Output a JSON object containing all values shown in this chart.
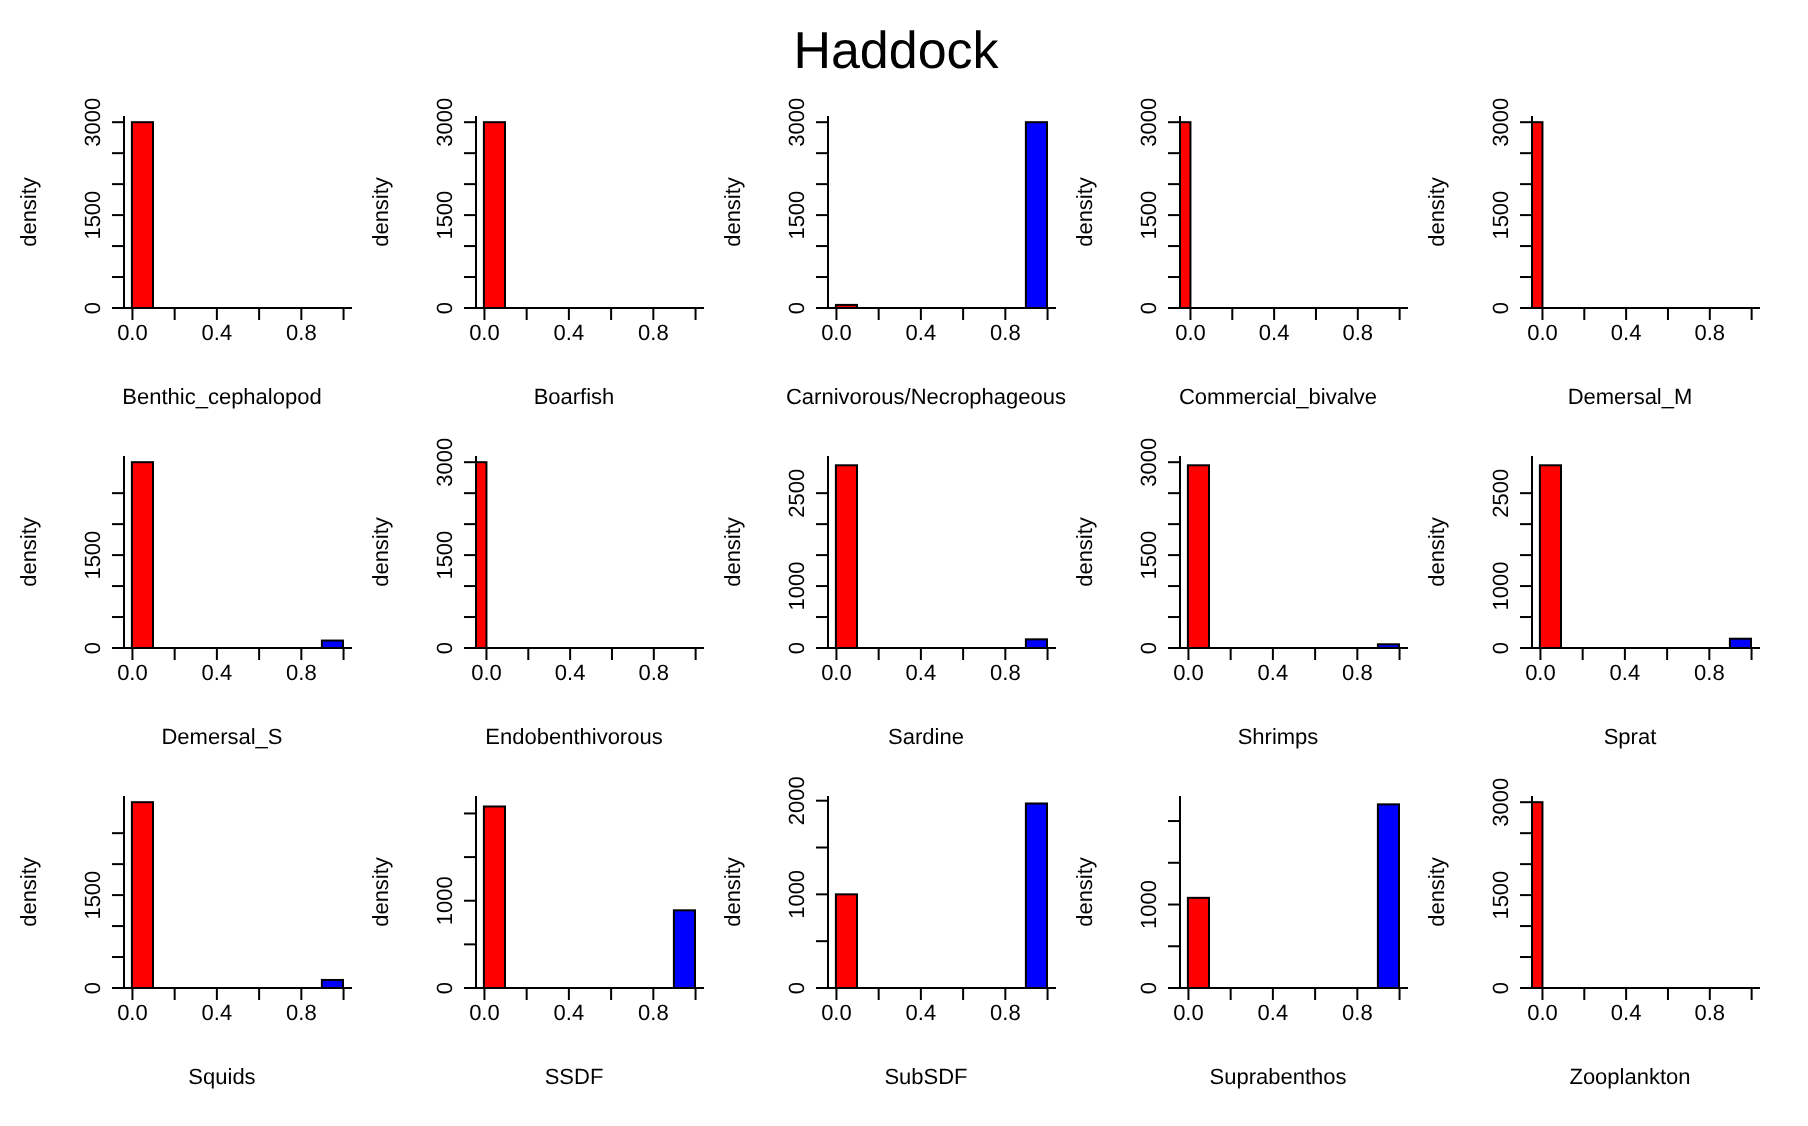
{
  "chart_data": [
    {
      "type": "histogram",
      "xlabel": "Benthic_cephalopod",
      "ylabel": "density",
      "bins": [
        0,
        0.1,
        0.2,
        0.3,
        0.4,
        0.5,
        0.6,
        0.7,
        0.8,
        0.9,
        1
      ],
      "values": [
        3000,
        0,
        0,
        0,
        0,
        0,
        0,
        0,
        0,
        0
      ],
      "colors": [
        "#ff0000",
        "#ffffff",
        "#ffffff",
        "#ffffff",
        "#ffffff",
        "#ffffff",
        "#ffffff",
        "#ffffff",
        "#ffffff",
        "#0000ff"
      ],
      "xlim": [
        -0.04,
        1.04
      ],
      "xticks": [
        {
          "value": 0,
          "label": "0.0"
        },
        {
          "value": 0.2,
          "label": null
        },
        {
          "value": 0.4,
          "label": "0.4"
        },
        {
          "value": 0.6,
          "label": null
        },
        {
          "value": 0.8,
          "label": "0.8"
        },
        {
          "value": 1,
          "label": null
        }
      ],
      "ylim": [
        0,
        3100
      ],
      "yticks": [
        0,
        {
          "value": 500,
          "label": null
        },
        {
          "value": 1000,
          "label": null
        },
        1500,
        {
          "value": 2000,
          "label": null
        },
        {
          "value": 2500,
          "label": null
        },
        3000
      ]
    },
    {
      "type": "histogram",
      "xlabel": "Boarfish",
      "ylabel": "density",
      "bins": [
        0,
        0.1,
        0.2,
        0.3,
        0.4,
        0.5,
        0.6,
        0.7,
        0.8,
        0.9,
        1
      ],
      "values": [
        3000,
        0,
        0,
        0,
        0,
        0,
        0,
        0,
        0,
        0
      ],
      "colors": [
        "#ff0000",
        "#ffffff",
        "#ffffff",
        "#ffffff",
        "#ffffff",
        "#ffffff",
        "#ffffff",
        "#ffffff",
        "#ffffff",
        "#0000ff"
      ],
      "xlim": [
        -0.04,
        1.04
      ],
      "xticks": [
        {
          "value": 0,
          "label": "0.0"
        },
        {
          "value": 0.2,
          "label": null
        },
        {
          "value": 0.4,
          "label": "0.4"
        },
        {
          "value": 0.6,
          "label": null
        },
        {
          "value": 0.8,
          "label": "0.8"
        },
        {
          "value": 1,
          "label": null
        }
      ],
      "ylim": [
        0,
        3100
      ],
      "yticks": [
        0,
        {
          "value": 500,
          "label": null
        },
        {
          "value": 1000,
          "label": null
        },
        1500,
        {
          "value": 2000,
          "label": null
        },
        {
          "value": 2500,
          "label": null
        },
        3000
      ]
    },
    {
      "type": "histogram",
      "title": "Haddock",
      "xlabel": "Carnivorous/Necrophageous",
      "ylabel": "density",
      "bins": [
        0,
        0.1,
        0.2,
        0.3,
        0.4,
        0.5,
        0.6,
        0.7,
        0.8,
        0.9,
        1
      ],
      "values": [
        50,
        0,
        0,
        0,
        0,
        0,
        0,
        0,
        0,
        3000
      ],
      "colors": [
        "#ff0000",
        "#ffffff",
        "#ffffff",
        "#ffffff",
        "#ffffff",
        "#ffffff",
        "#ffffff",
        "#ffffff",
        "#ffffff",
        "#0000ff"
      ],
      "xlim": [
        -0.04,
        1.04
      ],
      "xticks": [
        {
          "value": 0,
          "label": "0.0"
        },
        {
          "value": 0.2,
          "label": null
        },
        {
          "value": 0.4,
          "label": "0.4"
        },
        {
          "value": 0.6,
          "label": null
        },
        {
          "value": 0.8,
          "label": "0.8"
        },
        {
          "value": 1,
          "label": null
        }
      ],
      "ylim": [
        0,
        3100
      ],
      "yticks": [
        0,
        {
          "value": 500,
          "label": null
        },
        {
          "value": 1000,
          "label": null
        },
        1500,
        {
          "value": 2000,
          "label": null
        },
        {
          "value": 2500,
          "label": null
        },
        3000
      ]
    },
    {
      "type": "histogram",
      "xlabel": "Commercial_bivalve",
      "ylabel": "density",
      "bins": [
        -0.05,
        0
      ],
      "values": [
        3000
      ],
      "colors": [
        "#ff0000"
      ],
      "xlim": [
        -0.05,
        1.04
      ],
      "xticks": [
        {
          "value": 0,
          "label": "0.0"
        },
        {
          "value": 0.2,
          "label": null
        },
        {
          "value": 0.4,
          "label": "0.4"
        },
        {
          "value": 0.6,
          "label": null
        },
        {
          "value": 0.8,
          "label": "0.8"
        },
        {
          "value": 1,
          "label": null
        }
      ],
      "ylim": [
        0,
        3100
      ],
      "yticks": [
        0,
        {
          "value": 500,
          "label": null
        },
        {
          "value": 1000,
          "label": null
        },
        1500,
        {
          "value": 2000,
          "label": null
        },
        {
          "value": 2500,
          "label": null
        },
        3000
      ]
    },
    {
      "type": "histogram",
      "xlabel": "Demersal_M",
      "ylabel": "density",
      "bins": [
        -0.05,
        0
      ],
      "values": [
        3000
      ],
      "colors": [
        "#ff0000"
      ],
      "xlim": [
        -0.05,
        1.04
      ],
      "xticks": [
        {
          "value": 0,
          "label": "0.0"
        },
        {
          "value": 0.2,
          "label": null
        },
        {
          "value": 0.4,
          "label": "0.4"
        },
        {
          "value": 0.6,
          "label": null
        },
        {
          "value": 0.8,
          "label": "0.8"
        },
        {
          "value": 1,
          "label": null
        }
      ],
      "ylim": [
        0,
        3100
      ],
      "yticks": [
        0,
        {
          "value": 500,
          "label": null
        },
        {
          "value": 1000,
          "label": null
        },
        1500,
        {
          "value": 2000,
          "label": null
        },
        {
          "value": 2500,
          "label": null
        },
        3000
      ]
    },
    {
      "type": "histogram",
      "xlabel": "Demersal_S",
      "ylabel": "density",
      "bins": [
        0,
        0.1,
        0.2,
        0.3,
        0.4,
        0.5,
        0.6,
        0.7,
        0.8,
        0.9,
        1
      ],
      "values": [
        3000,
        0,
        0,
        0,
        0,
        0,
        0,
        0,
        0,
        120
      ],
      "colors": [
        "#ff0000",
        "#ffffff",
        "#ffffff",
        "#ffffff",
        "#ffffff",
        "#ffffff",
        "#ffffff",
        "#ffffff",
        "#ffffff",
        "#0000ff"
      ],
      "xlim": [
        -0.04,
        1.04
      ],
      "xticks": [
        {
          "value": 0,
          "label": "0.0"
        },
        {
          "value": 0.2,
          "label": null
        },
        {
          "value": 0.4,
          "label": "0.4"
        },
        {
          "value": 0.6,
          "label": null
        },
        {
          "value": 0.8,
          "label": "0.8"
        },
        {
          "value": 1,
          "label": null
        }
      ],
      "ylim": [
        0,
        3100
      ],
      "yticks": [
        0,
        {
          "value": 500,
          "label": null
        },
        {
          "value": 1000,
          "label": null
        },
        1500,
        {
          "value": 2000,
          "label": null
        },
        {
          "value": 2500,
          "label": null
        }
      ]
    },
    {
      "type": "histogram",
      "xlabel": "Endobenthivorous",
      "ylabel": "density",
      "bins": [
        -0.05,
        0
      ],
      "values": [
        3000
      ],
      "colors": [
        "#ff0000"
      ],
      "xlim": [
        -0.05,
        1.04
      ],
      "xticks": [
        {
          "value": 0,
          "label": "0.0"
        },
        {
          "value": 0.2,
          "label": null
        },
        {
          "value": 0.4,
          "label": "0.4"
        },
        {
          "value": 0.6,
          "label": null
        },
        {
          "value": 0.8,
          "label": "0.8"
        },
        {
          "value": 1,
          "label": null
        }
      ],
      "ylim": [
        0,
        3100
      ],
      "yticks": [
        0,
        {
          "value": 500,
          "label": null
        },
        {
          "value": 1000,
          "label": null
        },
        1500,
        {
          "value": 2000,
          "label": null
        },
        {
          "value": 2500,
          "label": null
        },
        3000
      ]
    },
    {
      "type": "histogram",
      "xlabel": "Sardine",
      "ylabel": "density",
      "bins": [
        0,
        0.1,
        0.2,
        0.3,
        0.4,
        0.5,
        0.6,
        0.7,
        0.8,
        0.9,
        1
      ],
      "values": [
        2950,
        0,
        0,
        0,
        0,
        0,
        0,
        0,
        0,
        140
      ],
      "colors": [
        "#ff0000",
        "#ffffff",
        "#ffffff",
        "#ffffff",
        "#ffffff",
        "#ffffff",
        "#ffffff",
        "#ffffff",
        "#ffffff",
        "#0000ff"
      ],
      "xlim": [
        -0.04,
        1.04
      ],
      "xticks": [
        {
          "value": 0,
          "label": "0.0"
        },
        {
          "value": 0.2,
          "label": null
        },
        {
          "value": 0.4,
          "label": "0.4"
        },
        {
          "value": 0.6,
          "label": null
        },
        {
          "value": 0.8,
          "label": "0.8"
        },
        {
          "value": 1,
          "label": null
        }
      ],
      "ylim": [
        0,
        3100
      ],
      "yticks": [
        0,
        {
          "value": 500,
          "label": null
        },
        1000,
        {
          "value": 1500,
          "label": null
        },
        {
          "value": 2000,
          "label": null
        },
        2500
      ]
    },
    {
      "type": "histogram",
      "xlabel": "Shrimps",
      "ylabel": "density",
      "bins": [
        0,
        0.1,
        0.2,
        0.3,
        0.4,
        0.5,
        0.6,
        0.7,
        0.8,
        0.9,
        1
      ],
      "values": [
        2950,
        0,
        0,
        0,
        0,
        0,
        0,
        0,
        0,
        60
      ],
      "colors": [
        "#ff0000",
        "#ffffff",
        "#ffffff",
        "#ffffff",
        "#ffffff",
        "#ffffff",
        "#ffffff",
        "#ffffff",
        "#ffffff",
        "#0000ff"
      ],
      "xlim": [
        -0.04,
        1.04
      ],
      "xticks": [
        {
          "value": 0,
          "label": "0.0"
        },
        {
          "value": 0.2,
          "label": null
        },
        {
          "value": 0.4,
          "label": "0.4"
        },
        {
          "value": 0.6,
          "label": null
        },
        {
          "value": 0.8,
          "label": "0.8"
        },
        {
          "value": 1,
          "label": null
        }
      ],
      "ylim": [
        0,
        3100
      ],
      "yticks": [
        0,
        {
          "value": 500,
          "label": null
        },
        {
          "value": 1000,
          "label": null
        },
        1500,
        {
          "value": 2000,
          "label": null
        },
        {
          "value": 2500,
          "label": null
        },
        3000
      ]
    },
    {
      "type": "histogram",
      "xlabel": "Sprat",
      "ylabel": "density",
      "bins": [
        0,
        0.1,
        0.2,
        0.3,
        0.4,
        0.5,
        0.6,
        0.7,
        0.8,
        0.9,
        1
      ],
      "values": [
        2950,
        0,
        0,
        0,
        0,
        0,
        0,
        0,
        0,
        150
      ],
      "colors": [
        "#ff0000",
        "#ffffff",
        "#ffffff",
        "#ffffff",
        "#ffffff",
        "#ffffff",
        "#ffffff",
        "#ffffff",
        "#ffffff",
        "#0000ff"
      ],
      "xlim": [
        -0.04,
        1.04
      ],
      "xticks": [
        {
          "value": 0,
          "label": "0.0"
        },
        {
          "value": 0.2,
          "label": null
        },
        {
          "value": 0.4,
          "label": "0.4"
        },
        {
          "value": 0.6,
          "label": null
        },
        {
          "value": 0.8,
          "label": "0.8"
        },
        {
          "value": 1,
          "label": null
        }
      ],
      "ylim": [
        0,
        3100
      ],
      "yticks": [
        0,
        {
          "value": 500,
          "label": null
        },
        1000,
        {
          "value": 1500,
          "label": null
        },
        {
          "value": 2000,
          "label": null
        },
        2500
      ]
    },
    {
      "type": "histogram",
      "xlabel": "Squids",
      "ylabel": "density",
      "bins": [
        0,
        0.1,
        0.2,
        0.3,
        0.4,
        0.5,
        0.6,
        0.7,
        0.8,
        0.9,
        1
      ],
      "values": [
        3000,
        0,
        0,
        0,
        0,
        0,
        0,
        0,
        0,
        130
      ],
      "colors": [
        "#ff0000",
        "#ffffff",
        "#ffffff",
        "#ffffff",
        "#ffffff",
        "#ffffff",
        "#ffffff",
        "#ffffff",
        "#ffffff",
        "#0000ff"
      ],
      "xlim": [
        -0.04,
        1.04
      ],
      "xticks": [
        {
          "value": 0,
          "label": "0.0"
        },
        {
          "value": 0.2,
          "label": null
        },
        {
          "value": 0.4,
          "label": "0.4"
        },
        {
          "value": 0.6,
          "label": null
        },
        {
          "value": 0.8,
          "label": "0.8"
        },
        {
          "value": 1,
          "label": null
        }
      ],
      "ylim": [
        0,
        3100
      ],
      "yticks": [
        0,
        {
          "value": 500,
          "label": null
        },
        {
          "value": 1000,
          "label": null
        },
        1500,
        {
          "value": 2000,
          "label": null
        },
        {
          "value": 2500,
          "label": null
        }
      ]
    },
    {
      "type": "histogram",
      "xlabel": "SSDF",
      "ylabel": "density",
      "bins": [
        0,
        0.1,
        0.2,
        0.3,
        0.4,
        0.5,
        0.6,
        0.7,
        0.8,
        0.9,
        1
      ],
      "values": [
        2080,
        0,
        0,
        0,
        0,
        0,
        0,
        0,
        0,
        890
      ],
      "colors": [
        "#ff0000",
        "#ffffff",
        "#ffffff",
        "#ffffff",
        "#ffffff",
        "#ffffff",
        "#ffffff",
        "#ffffff",
        "#ffffff",
        "#0000ff"
      ],
      "xlim": [
        -0.04,
        1.04
      ],
      "xticks": [
        {
          "value": 0,
          "label": "0.0"
        },
        {
          "value": 0.2,
          "label": null
        },
        {
          "value": 0.4,
          "label": "0.4"
        },
        {
          "value": 0.6,
          "label": null
        },
        {
          "value": 0.8,
          "label": "0.8"
        },
        {
          "value": 1,
          "label": null
        }
      ],
      "ylim": [
        0,
        2200
      ],
      "yticks": [
        0,
        {
          "value": 500,
          "label": null
        },
        1000,
        {
          "value": 1500,
          "label": null
        },
        {
          "value": 2000,
          "label": null
        }
      ]
    },
    {
      "type": "histogram",
      "xlabel": "SubSDF",
      "ylabel": "density",
      "bins": [
        0,
        0.1,
        0.2,
        0.3,
        0.4,
        0.5,
        0.6,
        0.7,
        0.8,
        0.9,
        1
      ],
      "values": [
        1000,
        0,
        0,
        0,
        0,
        0,
        0,
        0,
        0,
        1970
      ],
      "colors": [
        "#ff0000",
        "#ffffff",
        "#ffffff",
        "#ffffff",
        "#ffffff",
        "#ffffff",
        "#ffffff",
        "#ffffff",
        "#ffffff",
        "#0000ff"
      ],
      "xlim": [
        -0.04,
        1.04
      ],
      "xticks": [
        {
          "value": 0,
          "label": "0.0"
        },
        {
          "value": 0.2,
          "label": null
        },
        {
          "value": 0.4,
          "label": "0.4"
        },
        {
          "value": 0.6,
          "label": null
        },
        {
          "value": 0.8,
          "label": "0.8"
        },
        {
          "value": 1,
          "label": null
        }
      ],
      "ylim": [
        0,
        2050
      ],
      "yticks": [
        0,
        {
          "value": 500,
          "label": null
        },
        1000,
        {
          "value": 1500,
          "label": null
        },
        2000
      ]
    },
    {
      "type": "histogram",
      "xlabel": "Suprabenthos",
      "ylabel": "density",
      "bins": [
        0,
        0.1,
        0.2,
        0.3,
        0.4,
        0.5,
        0.6,
        0.7,
        0.8,
        0.9,
        1
      ],
      "values": [
        1080,
        0,
        0,
        0,
        0,
        0,
        0,
        0,
        0,
        2200
      ],
      "colors": [
        "#ff0000",
        "#ffffff",
        "#ffffff",
        "#ffffff",
        "#ffffff",
        "#ffffff",
        "#ffffff",
        "#ffffff",
        "#ffffff",
        "#0000ff"
      ],
      "xlim": [
        -0.04,
        1.04
      ],
      "xticks": [
        {
          "value": 0,
          "label": "0.0"
        },
        {
          "value": 0.2,
          "label": null
        },
        {
          "value": 0.4,
          "label": "0.4"
        },
        {
          "value": 0.6,
          "label": null
        },
        {
          "value": 0.8,
          "label": "0.8"
        },
        {
          "value": 1,
          "label": null
        }
      ],
      "ylim": [
        0,
        2300
      ],
      "yticks": [
        0,
        {
          "value": 500,
          "label": null
        },
        1000,
        {
          "value": 1500,
          "label": null
        },
        {
          "value": 2000,
          "label": null
        }
      ]
    },
    {
      "type": "histogram",
      "xlabel": "Zooplankton",
      "ylabel": "density",
      "bins": [
        -0.05,
        0
      ],
      "values": [
        3000
      ],
      "colors": [
        "#ff0000"
      ],
      "xlim": [
        -0.05,
        1.04
      ],
      "xticks": [
        {
          "value": 0,
          "label": "0.0"
        },
        {
          "value": 0.2,
          "label": null
        },
        {
          "value": 0.4,
          "label": "0.4"
        },
        {
          "value": 0.6,
          "label": null
        },
        {
          "value": 0.8,
          "label": "0.8"
        },
        {
          "value": 1,
          "label": null
        }
      ],
      "ylim": [
        0,
        3100
      ],
      "yticks": [
        0,
        {
          "value": 500,
          "label": null
        },
        {
          "value": 1000,
          "label": null
        },
        1500,
        {
          "value": 2000,
          "label": null
        },
        {
          "value": 2500,
          "label": null
        },
        3000
      ]
    }
  ]
}
